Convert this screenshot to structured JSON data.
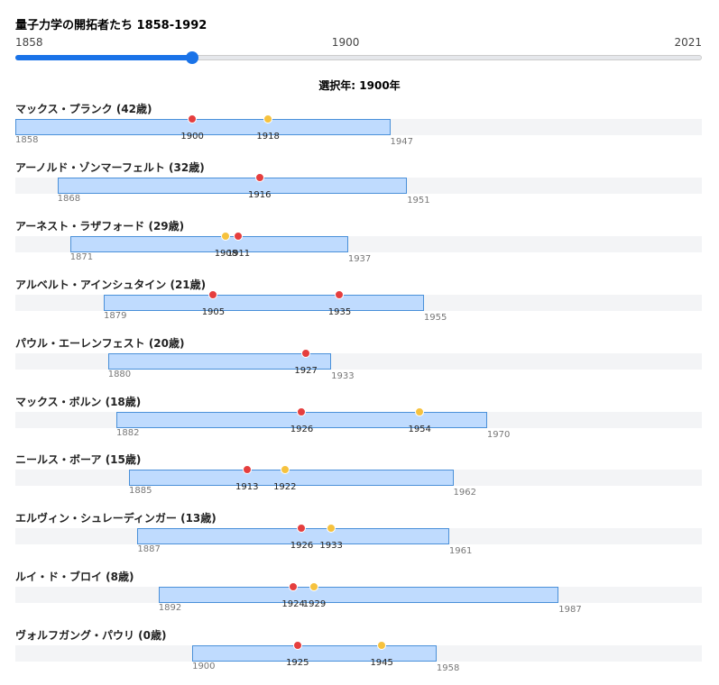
{
  "header": {
    "title": "量子力学の開拓者たち 1858-1992"
  },
  "slider": {
    "min": 1858,
    "max": 2021,
    "value": 1900,
    "color": "#1a73e8"
  },
  "selected_label": "選択年: 1900年",
  "people": [
    {
      "label": "マックス・プランク (42歳)",
      "birth": 1858,
      "death": 1947,
      "events": [
        {
          "year": 1900,
          "color": "#e53e3e"
        },
        {
          "year": 1918,
          "color": "#f6c23e"
        }
      ]
    },
    {
      "label": "アーノルド・ゾンマーフェルト (32歳)",
      "birth": 1868,
      "death": 1951,
      "events": [
        {
          "year": 1916,
          "color": "#e53e3e"
        }
      ]
    },
    {
      "label": "アーネスト・ラザフォード (29歳)",
      "birth": 1871,
      "death": 1937,
      "events": [
        {
          "year": 1908,
          "color": "#f6c23e"
        },
        {
          "year": 1911,
          "color": "#e53e3e"
        }
      ]
    },
    {
      "label": "アルベルト・アインシュタイン (21歳)",
      "birth": 1879,
      "death": 1955,
      "events": [
        {
          "year": 1905,
          "color": "#e53e3e"
        },
        {
          "year": 1935,
          "color": "#e53e3e"
        }
      ]
    },
    {
      "label": "パウル・エーレンフェスト (20歳)",
      "birth": 1880,
      "death": 1933,
      "events": [
        {
          "year": 1927,
          "color": "#e53e3e"
        }
      ]
    },
    {
      "label": "マックス・ボルン (18歳)",
      "birth": 1882,
      "death": 1970,
      "events": [
        {
          "year": 1926,
          "color": "#e53e3e"
        },
        {
          "year": 1954,
          "color": "#f6c23e"
        }
      ]
    },
    {
      "label": "ニールス・ボーア (15歳)",
      "birth": 1885,
      "death": 1962,
      "events": [
        {
          "year": 1913,
          "color": "#e53e3e"
        },
        {
          "year": 1922,
          "color": "#f6c23e"
        }
      ]
    },
    {
      "label": "エルヴィン・シュレーディンガー (13歳)",
      "birth": 1887,
      "death": 1961,
      "events": [
        {
          "year": 1926,
          "color": "#e53e3e"
        },
        {
          "year": 1933,
          "color": "#f6c23e"
        }
      ]
    },
    {
      "label": "ルイ・ド・ブロイ (8歳)",
      "birth": 1892,
      "death": 1987,
      "events": [
        {
          "year": 1924,
          "color": "#e53e3e"
        },
        {
          "year": 1929,
          "color": "#f6c23e"
        }
      ]
    },
    {
      "label": "ヴォルフガング・パウリ (0歳)",
      "birth": 1900,
      "death": 1958,
      "events": [
        {
          "year": 1925,
          "color": "#e53e3e"
        },
        {
          "year": 1945,
          "color": "#f6c23e"
        }
      ]
    }
  ]
}
